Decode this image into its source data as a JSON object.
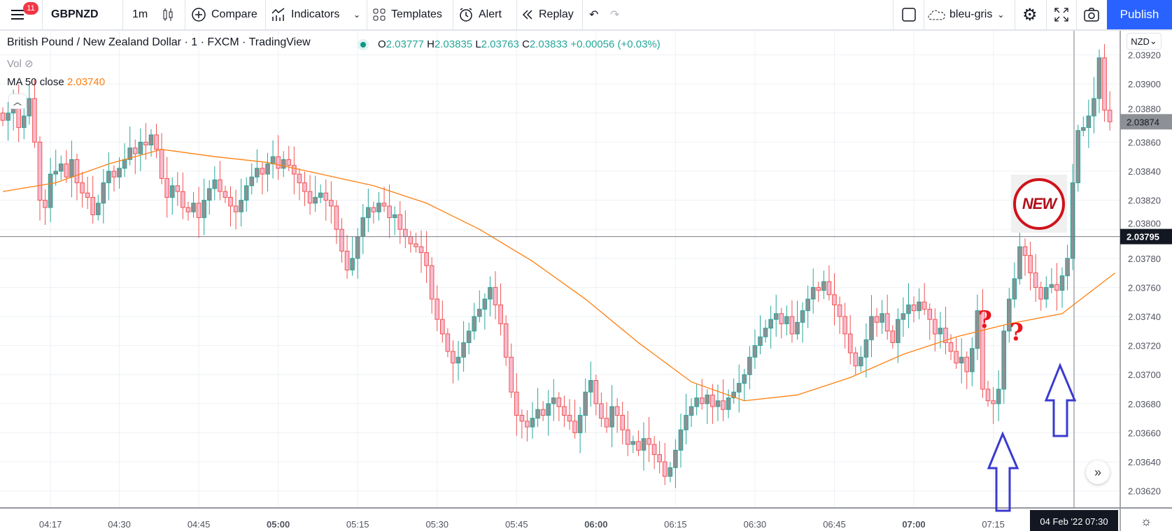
{
  "toolbar": {
    "notifications": "11",
    "symbol": "GBPNZD",
    "interval": "1m",
    "compare": "Compare",
    "indicators": "Indicators",
    "templates": "Templates",
    "alert": "Alert",
    "replay": "Replay",
    "layout_name": "bleu-gris",
    "publish": "Publish"
  },
  "legend": {
    "title": "British Pound / New Zealand Dollar · 1 · FXCM · TradingView",
    "o_label": "O",
    "o": "2.03777",
    "h_label": "H",
    "h": "2.03835",
    "l_label": "L",
    "l": "2.03763",
    "c_label": "C",
    "c": "2.03833",
    "change": "+0.00056 (+0.03%)",
    "vol": "Vol",
    "ma_label": "MA 50 close",
    "ma_value": "2.03740"
  },
  "price_axis": {
    "currency": "NZD",
    "current_price": "2.03874",
    "crosshair_price": "2.03795"
  },
  "time_axis": {
    "crosshair_label": "04 Feb '22   07:30"
  },
  "annotations": {
    "sticker": "NEW",
    "question": "?"
  },
  "colors": {
    "up": "#26a69a",
    "up_body": "#8d9094",
    "down": "#ef5350",
    "down_body": "#f8bbd0",
    "ma": "#ff7f0e",
    "accent": "#2962ff",
    "arrow": "#3a3ad0"
  },
  "chart_data": {
    "type": "candlestick",
    "symbol": "GBPNZD",
    "interval": "1m",
    "ylim": [
      2.0362,
      2.0393
    ],
    "yticks": [
      2.0362,
      2.0364,
      2.0366,
      2.0368,
      2.037,
      2.0372,
      2.0374,
      2.0376,
      2.0378,
      2.038,
      2.0382,
      2.0384,
      2.0386,
      2.0388,
      2.039,
      2.0392
    ],
    "ytick_labels": [
      "2.03620",
      "2.03640",
      "2.03660",
      "2.03680",
      "2.03700",
      "2.03720",
      "2.03740",
      "2.03760",
      "2.03780",
      "2.03800",
      "2.03820",
      "2.03840",
      "2.03860",
      "2.03880",
      "2.03900",
      "2.03920"
    ],
    "xticks": [
      {
        "label": "04:17",
        "bar": 9
      },
      {
        "label": "04:30",
        "bar": 22
      },
      {
        "label": "04:45",
        "bar": 37
      },
      {
        "label": "05:00",
        "bar": 52,
        "bold": true
      },
      {
        "label": "05:15",
        "bar": 67
      },
      {
        "label": "05:30",
        "bar": 82
      },
      {
        "label": "05:45",
        "bar": 97
      },
      {
        "label": "06:00",
        "bar": 112,
        "bold": true
      },
      {
        "label": "06:15",
        "bar": 127
      },
      {
        "label": "06:30",
        "bar": 142
      },
      {
        "label": "06:45",
        "bar": 157
      },
      {
        "label": "07:00",
        "bar": 172,
        "bold": true
      },
      {
        "label": "07:15",
        "bar": 187
      }
    ],
    "close": [
      2.03875,
      2.0388,
      2.03885,
      2.0387,
      2.03878,
      2.0389,
      2.0386,
      2.0382,
      2.03815,
      2.03838,
      2.0384,
      2.03845,
      2.03836,
      2.03848,
      2.03832,
      2.03825,
      2.03822,
      2.0381,
      2.03818,
      2.03832,
      2.0384,
      2.03836,
      2.03842,
      2.03848,
      2.03856,
      2.03852,
      2.0386,
      2.03858,
      2.03865,
      2.03855,
      2.03835,
      2.03822,
      2.0383,
      2.03826,
      2.03815,
      2.03812,
      2.03818,
      2.03808,
      2.0382,
      2.03828,
      2.03834,
      2.03826,
      2.03822,
      2.03816,
      2.03812,
      2.0382,
      2.0383,
      2.03836,
      2.03842,
      2.03838,
      2.03845,
      2.0385,
      2.03842,
      2.03848,
      2.03844,
      2.03838,
      2.03832,
      2.03826,
      2.03818,
      2.03822,
      2.03825,
      2.0382,
      2.03816,
      2.038,
      2.03785,
      2.03772,
      2.0378,
      2.03795,
      2.03808,
      2.03815,
      2.03812,
      2.03818,
      2.03816,
      2.03808,
      2.0381,
      2.038,
      2.03795,
      2.0379,
      2.03788,
      2.03784,
      2.03775,
      2.03752,
      2.03738,
      2.03728,
      2.03716,
      2.03708,
      2.03712,
      2.03722,
      2.0373,
      2.0374,
      2.03745,
      2.03752,
      2.0376,
      2.03748,
      2.03735,
      2.03712,
      2.03688,
      2.03672,
      2.03668,
      2.03664,
      2.0367,
      2.03676,
      2.03672,
      2.0368,
      2.03684,
      2.03678,
      2.03672,
      2.03668,
      2.0366,
      2.03672,
      2.03688,
      2.03696,
      2.0368,
      2.0367,
      2.03664,
      2.03678,
      2.03672,
      2.03662,
      2.03652,
      2.03654,
      2.03648,
      2.03656,
      2.03652,
      2.03645,
      2.0364,
      2.0363,
      2.03636,
      2.03648,
      2.03662,
      2.03672,
      2.03678,
      2.03684,
      2.0368,
      2.03686,
      2.03678,
      2.03682,
      2.03676,
      2.03684,
      2.03688,
      2.03694,
      2.037,
      2.03712,
      2.0372,
      2.03726,
      2.03732,
      2.03738,
      2.03742,
      2.03735,
      2.0374,
      2.03728,
      2.03736,
      2.03744,
      2.03752,
      2.0376,
      2.03758,
      2.03764,
      2.03755,
      2.03748,
      2.0374,
      2.03728,
      2.03715,
      2.03706,
      2.03712,
      2.03724,
      2.0374,
      2.03736,
      2.03742,
      2.0373,
      2.03722,
      2.03738,
      2.03742,
      2.03748,
      2.03744,
      2.0375,
      2.03745,
      2.03738,
      2.03728,
      2.03732,
      2.03722,
      2.03716,
      2.03708,
      2.03712,
      2.03702,
      2.03718,
      2.03744,
      2.0369,
      2.03682,
      2.0368,
      2.0369,
      2.0373,
      2.03752,
      2.03766,
      2.03788,
      2.03782,
      2.0377,
      2.0376,
      2.03752,
      2.0376,
      2.03762,
      2.03758,
      2.03768,
      2.0378,
      2.03832,
      2.03868,
      2.0387,
      2.03878,
      2.0389,
      2.03918,
      2.03882,
      2.03874
    ],
    "ma50": {
      "every_bars": 10,
      "values": [
        2.03826,
        2.03832,
        2.03845,
        2.03855,
        2.0385,
        2.03846,
        2.03838,
        2.0383,
        2.03818,
        2.038,
        2.03778,
        2.03752,
        2.03722,
        2.03695,
        2.03682,
        2.03686,
        2.03698,
        2.03714,
        2.03726,
        2.03735,
        2.03742,
        2.0377
      ]
    }
  }
}
